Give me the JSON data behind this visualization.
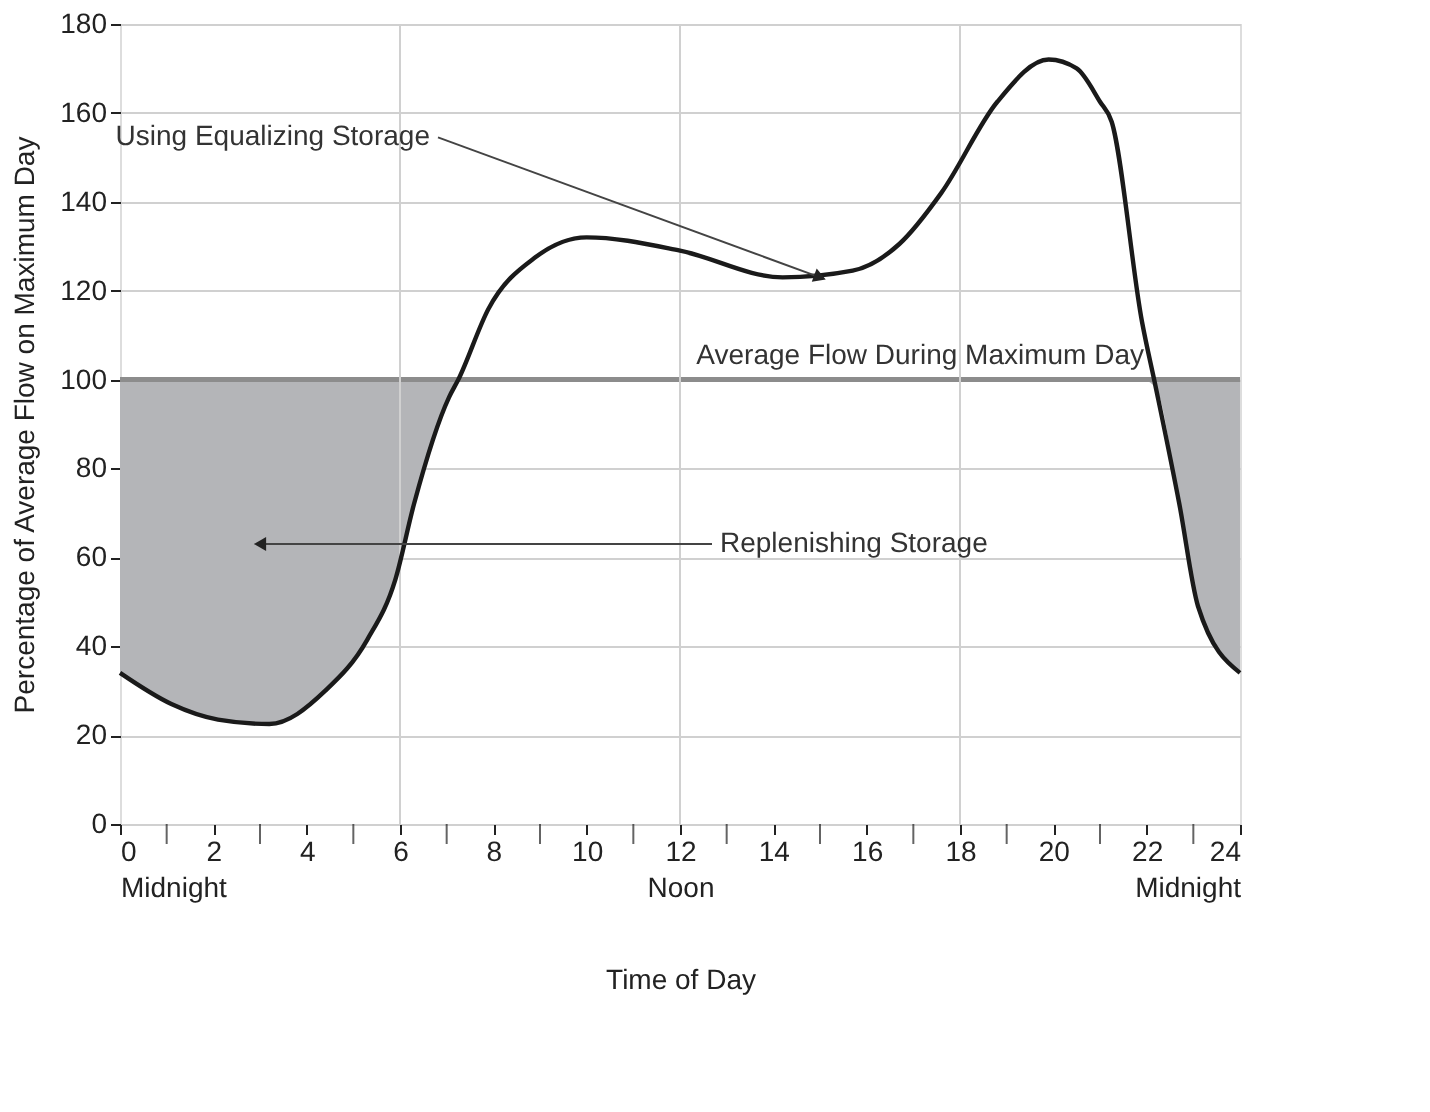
{
  "chart_data": {
    "type": "line",
    "xlabel": "Time of Day",
    "ylabel": "Percentage of Average Flow on Maximum Day",
    "series": [
      {
        "color": "#1a1a1a",
        "x": [
          0,
          1.1,
          2.1,
          3.2,
          4.4,
          5.3,
          5.9,
          6.3,
          7.05,
          7.25,
          7.9,
          8.9,
          10,
          12,
          14.2,
          15.7,
          16.7,
          17.6,
          18.8,
          19.9,
          20.5,
          21,
          21.25,
          21.9,
          22.2,
          22.7,
          23.1,
          24
        ],
        "values": [
          34,
          27,
          23.5,
          22.5,
          30,
          41.5,
          55,
          72,
          96,
          100,
          116,
          127.5,
          132,
          129,
          123,
          124.5,
          130.5,
          142,
          162.5,
          172,
          170,
          162.5,
          158,
          113,
          98,
          72,
          49,
          34
        ],
        "lower": [
          34,
          27,
          23.5,
          22.5,
          30,
          41.5,
          55,
          72,
          96,
          100,
          100,
          100,
          100,
          100,
          100,
          100,
          100,
          100,
          100,
          100,
          100,
          100,
          100,
          100,
          98,
          72,
          49,
          34
        ],
        "upper": [
          100,
          100,
          100,
          100,
          100,
          100,
          100,
          100,
          100,
          100,
          100,
          100,
          100,
          100,
          100,
          100,
          100,
          100,
          100,
          100,
          100,
          100,
          100,
          100,
          100,
          100,
          100,
          100
        ]
      }
    ],
    "xlim": [
      0,
      24
    ],
    "xticks": [
      {
        "value": 0,
        "label": "0\n\nMidnight"
      },
      {
        "value": 1,
        "label": null
      },
      2,
      {
        "value": 3,
        "label": null
      },
      4,
      {
        "value": 5,
        "label": null
      },
      6,
      {
        "value": 7,
        "label": null
      },
      8,
      {
        "value": 9,
        "label": null
      },
      10,
      {
        "value": 11,
        "label": null
      },
      {
        "value": 12,
        "label": "12\n\nNoon"
      },
      {
        "value": 13,
        "label": null
      },
      14,
      {
        "value": 15,
        "label": null
      },
      16,
      {
        "value": 17,
        "label": null
      },
      18,
      {
        "value": 19,
        "label": null
      },
      20,
      {
        "value": 21,
        "label": null
      },
      22,
      {
        "value": 23,
        "label": null
      },
      {
        "value": 24,
        "label": "24\n\nMidnight"
      }
    ],
    "ylim": [
      0,
      180
    ],
    "yticks": [
      0,
      20,
      40,
      60,
      80,
      100,
      120,
      140,
      160,
      180
    ],
    "grid": "y",
    "ref_lines": [
      {
        "axis": "y",
        "value": 100,
        "label": "Average Flow During Maximum Day",
        "color": "#8c8c8c"
      },
      {
        "axis": "x",
        "value": 6,
        "label": null,
        "color": "#d0d0d0"
      },
      {
        "axis": "x",
        "value": 12,
        "label": null,
        "color": "#d0d0d0"
      },
      {
        "axis": "x",
        "value": 18,
        "label": null,
        "color": "#d0d0d0"
      }
    ],
    "annotations": [
      {
        "text": "Using Equalizing Storage",
        "x": 15,
        "y": 123
      },
      {
        "text": "Replenishing Storage",
        "x": 3,
        "y": 63
      }
    ]
  }
}
